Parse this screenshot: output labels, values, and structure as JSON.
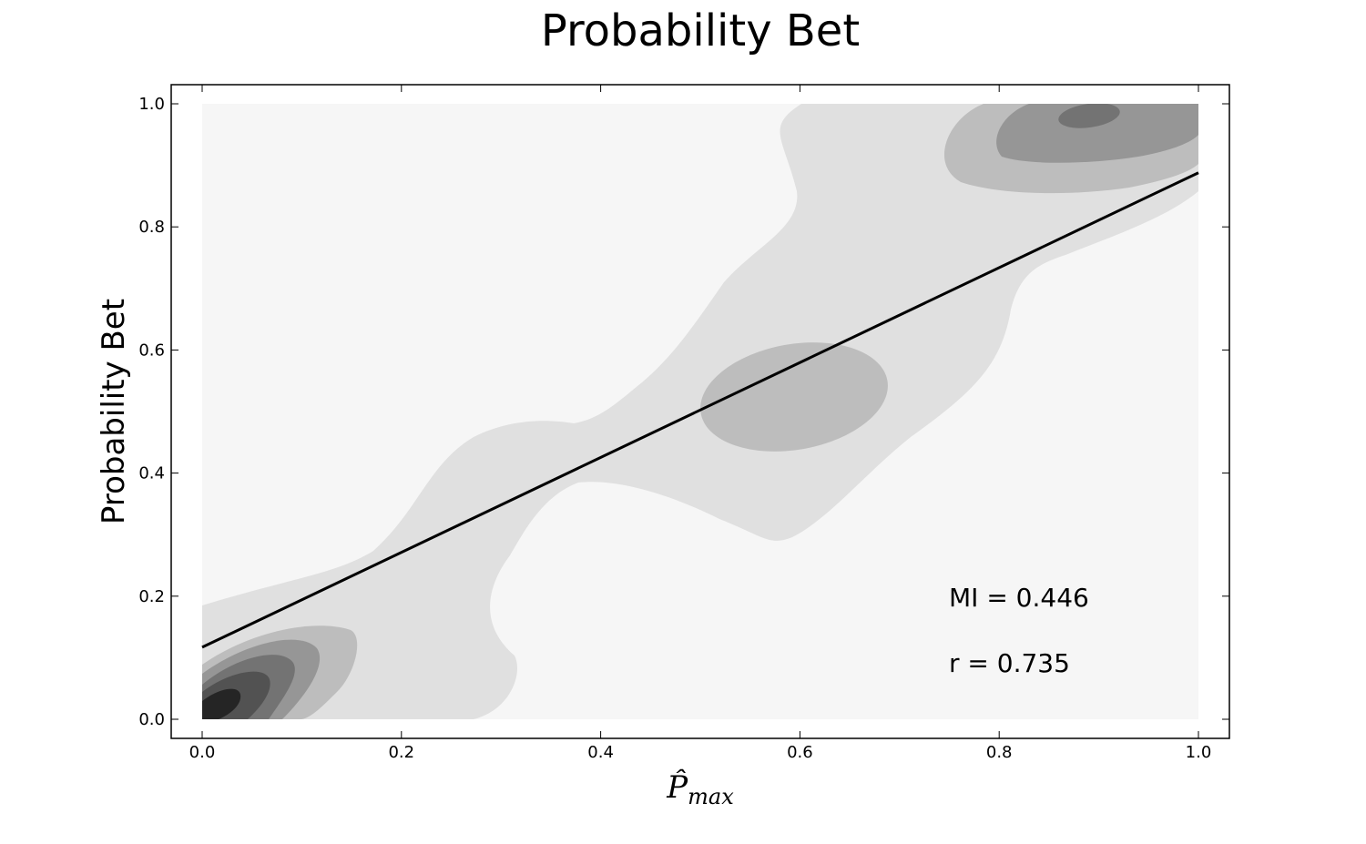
{
  "chart_data": {
    "type": "contour",
    "title": "Probability Bet",
    "xlabel": "P̂",
    "xlabel_subscript": "max",
    "ylabel": "Probability Bet",
    "xlim": [
      0.0,
      1.0
    ],
    "ylim": [
      0.0,
      1.0
    ],
    "xticks": [
      0.0,
      0.2,
      0.4,
      0.6,
      0.8,
      1.0
    ],
    "yticks": [
      0.0,
      0.2,
      0.4,
      0.6,
      0.8,
      1.0
    ],
    "xtick_labels": [
      "0.0",
      "0.2",
      "0.4",
      "0.6",
      "0.8",
      "1.0"
    ],
    "ytick_labels": [
      "0.0",
      "0.2",
      "0.4",
      "0.6",
      "0.8",
      "1.0"
    ],
    "colormap": "greys",
    "level_colors": [
      "#f6f6f6",
      "#e0e0e0",
      "#bdbdbd",
      "#969696",
      "#737373",
      "#525252",
      "#252525"
    ],
    "regression_line": {
      "x": [
        0.0,
        1.0
      ],
      "y": [
        0.117,
        0.888
      ],
      "color": "#000000"
    },
    "annotations": [
      {
        "key": "mi",
        "text": "MI = 0.446"
      },
      {
        "key": "r",
        "text": "r = 0.735"
      }
    ]
  }
}
